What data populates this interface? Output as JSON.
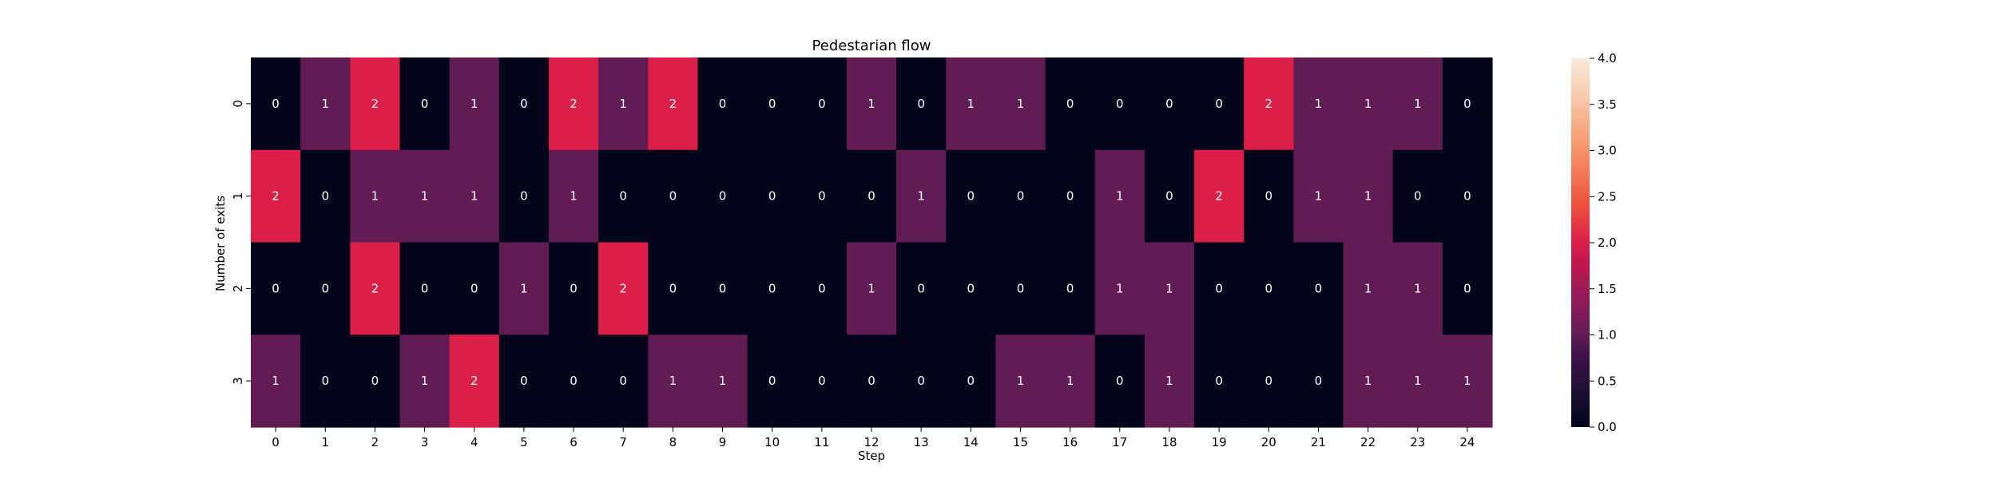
{
  "chart_data": {
    "type": "heatmap",
    "title": "Pedestarian flow",
    "xlabel": "Step",
    "ylabel": "Number of exits",
    "x_categories": [
      "0",
      "1",
      "2",
      "3",
      "4",
      "5",
      "6",
      "7",
      "8",
      "9",
      "10",
      "11",
      "12",
      "13",
      "14",
      "15",
      "16",
      "17",
      "18",
      "19",
      "20",
      "21",
      "22",
      "23",
      "24"
    ],
    "y_categories": [
      "0",
      "1",
      "2",
      "3"
    ],
    "values": [
      [
        0,
        1,
        2,
        0,
        1,
        0,
        2,
        1,
        2,
        0,
        0,
        0,
        1,
        0,
        1,
        1,
        0,
        0,
        0,
        0,
        2,
        1,
        1,
        1,
        0
      ],
      [
        2,
        0,
        1,
        1,
        1,
        0,
        1,
        0,
        0,
        0,
        0,
        0,
        0,
        1,
        0,
        0,
        0,
        1,
        0,
        2,
        0,
        1,
        1,
        0,
        0
      ],
      [
        0,
        0,
        2,
        0,
        0,
        1,
        0,
        2,
        0,
        0,
        0,
        0,
        1,
        0,
        0,
        0,
        0,
        1,
        1,
        0,
        0,
        0,
        1,
        1,
        0
      ],
      [
        1,
        0,
        0,
        1,
        2,
        0,
        0,
        0,
        1,
        1,
        0,
        0,
        0,
        0,
        0,
        1,
        1,
        0,
        1,
        0,
        0,
        0,
        1,
        1,
        1
      ]
    ],
    "annotations": true,
    "colorbar": {
      "vmin": 0,
      "vmax": 4,
      "ticks": [
        "0.0",
        "0.5",
        "1.0",
        "1.5",
        "2.0",
        "2.5",
        "3.0",
        "3.5",
        "4.0"
      ],
      "colormap": "rocket"
    },
    "cell_text_color": "#ffffff"
  }
}
